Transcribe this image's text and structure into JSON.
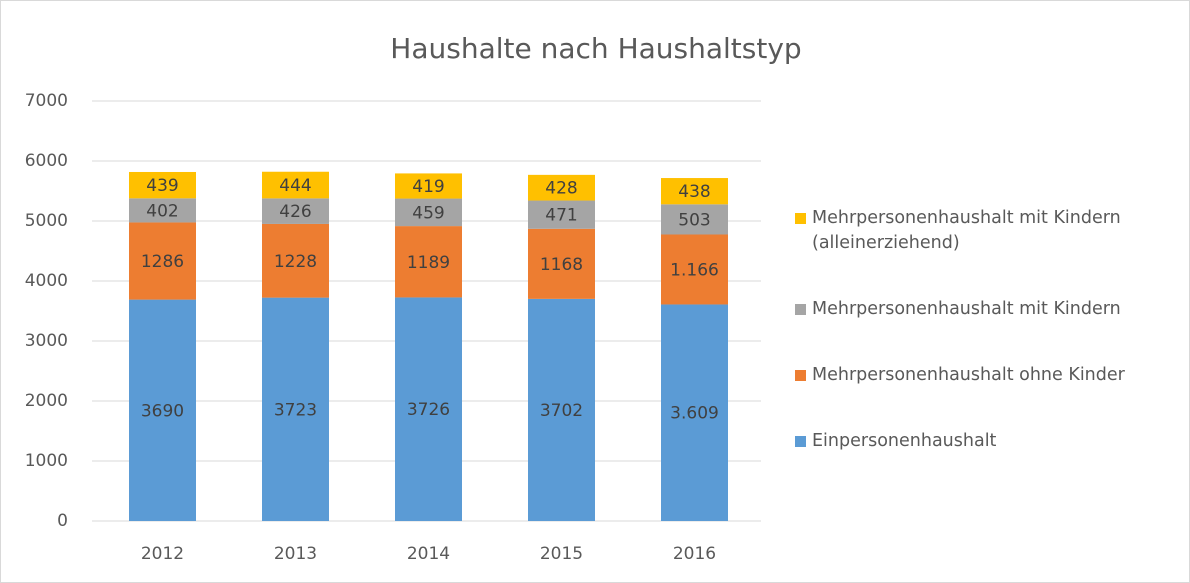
{
  "chart_data": {
    "type": "stacked_bar",
    "title": "Haushalte nach Haushaltstyp",
    "categories": [
      "2012",
      "2013",
      "2014",
      "2015",
      "2016"
    ],
    "series": [
      {
        "name": "Einpersonenhaushalt",
        "color": "#5b9bd5",
        "values": [
          3690,
          3723,
          3726,
          3702,
          3609
        ],
        "value_labels": [
          "3690",
          "3723",
          "3726",
          "3702",
          "3.609"
        ]
      },
      {
        "name": "Mehrpersonenhaushalt ohne Kinder",
        "color": "#ed7d31",
        "values": [
          1286,
          1228,
          1189,
          1168,
          1166
        ],
        "value_labels": [
          "1286",
          "1228",
          "1189",
          "1168",
          "1.166"
        ]
      },
      {
        "name": "Mehrpersonenhaushalt mit Kindern",
        "color": "#a5a5a5",
        "values": [
          402,
          426,
          459,
          471,
          503
        ]
      },
      {
        "name": "Mehrpersonenhaushalt mit Kindern (alleinerziehend)",
        "color": "#ffc000",
        "values": [
          439,
          444,
          419,
          428,
          438
        ]
      }
    ],
    "ylim": [
      0,
      7000
    ],
    "yticks": [
      0,
      1000,
      2000,
      3000,
      4000,
      5000,
      6000,
      7000
    ],
    "grid": true,
    "legend": "right"
  }
}
